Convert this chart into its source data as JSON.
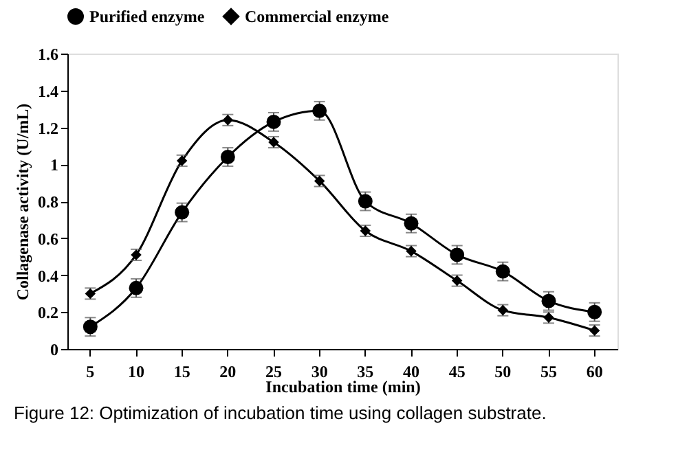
{
  "chart_data": {
    "type": "line",
    "xlabel": "Incubation time (min)",
    "ylabel": "Collagenase activity  (U/mL)",
    "categories": [
      "5",
      "10",
      "15",
      "20",
      "25",
      "30",
      "35",
      "40",
      "45",
      "50",
      "55",
      "60"
    ],
    "series": [
      {
        "name": "Purified enzyme",
        "color": "#000000",
        "marker": "circle",
        "values": [
          0.12,
          0.33,
          0.74,
          1.04,
          1.23,
          1.29,
          0.8,
          0.68,
          0.51,
          0.42,
          0.26,
          0.2
        ],
        "errors": [
          0.05,
          0.05,
          0.05,
          0.05,
          0.05,
          0.05,
          0.05,
          0.05,
          0.05,
          0.05,
          0.05,
          0.05
        ]
      },
      {
        "name": "Commercial enzyme",
        "color": "#000000",
        "marker": "diamond",
        "values": [
          0.3,
          0.51,
          1.02,
          1.24,
          1.12,
          0.91,
          0.64,
          0.53,
          0.37,
          0.21,
          0.17,
          0.1
        ],
        "errors": [
          0.03,
          0.03,
          0.03,
          0.03,
          0.03,
          0.03,
          0.03,
          0.03,
          0.03,
          0.03,
          0.03,
          0.03
        ]
      }
    ],
    "ylim": [
      0,
      1.6
    ],
    "yticks": [
      0,
      0.2,
      0.4,
      0.6,
      0.8,
      1,
      1.2,
      1.4,
      1.6
    ],
    "grid": false,
    "legend": "top",
    "line_style": "solid",
    "annotations": [
      "Figure 12: Optimization of incubation time using collagen substrate."
    ]
  }
}
